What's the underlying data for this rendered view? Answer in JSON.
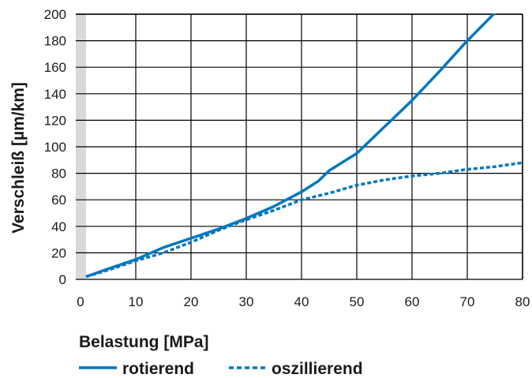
{
  "chart_data": {
    "type": "line",
    "title": "",
    "xlabel": "Belastung [MPa]",
    "ylabel": "Verschleiß [µm/km]",
    "xlim": [
      0,
      80
    ],
    "ylim": [
      0,
      200
    ],
    "xticks": [
      "0",
      "10",
      "20",
      "30",
      "40",
      "50",
      "60",
      "70",
      "80"
    ],
    "yticks": [
      "0",
      "20",
      "40",
      "60",
      "80",
      "100",
      "120",
      "140",
      "160",
      "180",
      "200"
    ],
    "grid": true,
    "legend_position": "bottom",
    "colors": {
      "series": "#0077c0",
      "grid": "#000000",
      "axis_band": "#d9d9d9"
    },
    "series": [
      {
        "name": "rotierend",
        "style": "solid",
        "x": [
          1,
          5,
          10,
          15,
          20,
          25,
          30,
          35,
          40,
          43,
          45,
          50,
          55,
          60,
          65,
          70,
          75
        ],
        "y": [
          2,
          8,
          15,
          24,
          31,
          38,
          46,
          55,
          66,
          74,
          82,
          95,
          115,
          135,
          157,
          180,
          201
        ]
      },
      {
        "name": "oszillierend",
        "style": "dashed",
        "x": [
          1,
          5,
          10,
          15,
          20,
          25,
          30,
          35,
          40,
          45,
          50,
          55,
          60,
          65,
          70,
          75,
          80
        ],
        "y": [
          2,
          7,
          14,
          20,
          28,
          37,
          45,
          52,
          60,
          65,
          71,
          75,
          78,
          80,
          83,
          85,
          88
        ]
      }
    ]
  }
}
